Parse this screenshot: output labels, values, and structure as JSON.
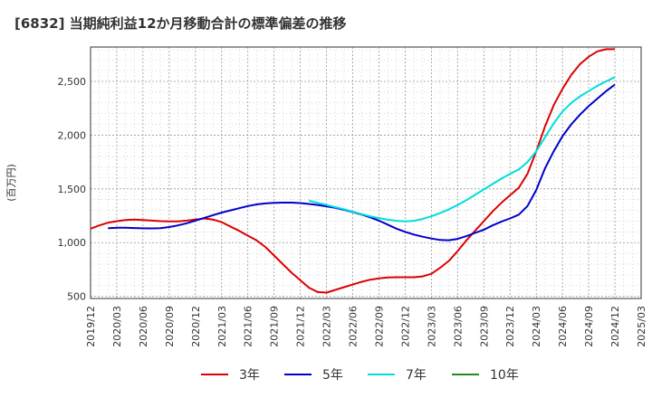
{
  "chart_data": {
    "type": "line",
    "title": "[6832]  当期純利益12か月移動合計の標準偏差の推移",
    "ylabel": "(百万円)",
    "xlabel": "",
    "ylim": [
      480,
      2820
    ],
    "yticks": [
      500,
      1000,
      1500,
      2000,
      2500
    ],
    "ytick_labels": [
      "500",
      "1,000",
      "1,500",
      "2,000",
      "2,500"
    ],
    "xticks": [
      "2019/12",
      "2020/03",
      "2020/06",
      "2020/09",
      "2020/12",
      "2021/03",
      "2021/06",
      "2021/09",
      "2021/12",
      "2022/03",
      "2022/06",
      "2022/09",
      "2022/12",
      "2023/03",
      "2023/06",
      "2023/09",
      "2023/12",
      "2024/03",
      "2024/06",
      "2024/09",
      "2024/12",
      "2025/03"
    ],
    "grid": true,
    "legend_position": "bottom",
    "series": [
      {
        "name": "3年",
        "color": "#dd0000",
        "x": [
          "2019/12",
          "2020/01",
          "2020/02",
          "2020/03",
          "2020/04",
          "2020/05",
          "2020/06",
          "2020/07",
          "2020/08",
          "2020/09",
          "2020/10",
          "2020/11",
          "2020/12",
          "2021/01",
          "2021/02",
          "2021/03",
          "2021/04",
          "2021/05",
          "2021/06",
          "2021/07",
          "2021/08",
          "2021/09",
          "2021/10",
          "2021/11",
          "2021/12",
          "2022/01",
          "2022/02",
          "2022/03",
          "2022/04",
          "2022/05",
          "2022/06",
          "2022/07",
          "2022/08",
          "2022/09",
          "2022/10",
          "2022/11",
          "2022/12",
          "2023/01",
          "2023/02",
          "2023/03",
          "2023/04",
          "2023/05",
          "2023/06",
          "2023/07",
          "2023/08",
          "2023/09",
          "2023/10",
          "2023/11",
          "2023/12",
          "2024/01",
          "2024/02",
          "2024/03",
          "2024/04",
          "2024/05",
          "2024/06",
          "2024/07",
          "2024/08",
          "2024/09",
          "2024/10",
          "2024/11",
          "2024/12"
        ],
        "values": [
          1130,
          1160,
          1185,
          1200,
          1210,
          1215,
          1210,
          1205,
          1200,
          1198,
          1198,
          1205,
          1215,
          1225,
          1215,
          1190,
          1150,
          1110,
          1065,
          1020,
          960,
          880,
          800,
          720,
          650,
          580,
          540,
          535,
          560,
          585,
          610,
          635,
          655,
          668,
          675,
          678,
          678,
          678,
          685,
          710,
          765,
          830,
          920,
          1020,
          1110,
          1200,
          1290,
          1370,
          1440,
          1510,
          1640,
          1850,
          2080,
          2280,
          2430,
          2560,
          2660,
          2730,
          2780,
          2800,
          2800
        ]
      },
      {
        "name": "5年",
        "color": "#0000cc",
        "x": [
          "2020/02",
          "2020/03",
          "2020/04",
          "2020/05",
          "2020/06",
          "2020/07",
          "2020/08",
          "2020/09",
          "2020/10",
          "2020/11",
          "2020/12",
          "2021/01",
          "2021/02",
          "2021/03",
          "2021/04",
          "2021/05",
          "2021/06",
          "2021/07",
          "2021/08",
          "2021/09",
          "2021/10",
          "2021/11",
          "2021/12",
          "2022/01",
          "2022/02",
          "2022/03",
          "2022/04",
          "2022/05",
          "2022/06",
          "2022/07",
          "2022/08",
          "2022/09",
          "2022/10",
          "2022/11",
          "2022/12",
          "2023/01",
          "2023/02",
          "2023/03",
          "2023/04",
          "2023/05",
          "2023/06",
          "2023/07",
          "2023/08",
          "2023/09",
          "2023/10",
          "2023/11",
          "2023/12",
          "2024/01",
          "2024/02",
          "2024/03",
          "2024/04",
          "2024/05",
          "2024/06",
          "2024/07",
          "2024/08",
          "2024/09",
          "2024/10",
          "2024/11",
          "2024/12"
        ],
        "values": [
          1135,
          1138,
          1138,
          1136,
          1133,
          1132,
          1135,
          1145,
          1160,
          1180,
          1205,
          1230,
          1255,
          1280,
          1300,
          1320,
          1340,
          1355,
          1365,
          1370,
          1372,
          1372,
          1368,
          1360,
          1350,
          1338,
          1323,
          1305,
          1285,
          1262,
          1235,
          1205,
          1168,
          1130,
          1100,
          1075,
          1055,
          1038,
          1025,
          1022,
          1035,
          1060,
          1090,
          1120,
          1160,
          1195,
          1225,
          1260,
          1340,
          1490,
          1690,
          1850,
          1990,
          2100,
          2190,
          2270,
          2340,
          2410,
          2470
        ]
      },
      {
        "name": "7年",
        "color": "#00dddd",
        "x": [
          "2022/01",
          "2022/02",
          "2022/03",
          "2022/04",
          "2022/05",
          "2022/06",
          "2022/07",
          "2022/08",
          "2022/09",
          "2022/10",
          "2022/11",
          "2022/12",
          "2023/01",
          "2023/02",
          "2023/03",
          "2023/04",
          "2023/05",
          "2023/06",
          "2023/07",
          "2023/08",
          "2023/09",
          "2023/10",
          "2023/11",
          "2023/12",
          "2024/01",
          "2024/02",
          "2024/03",
          "2024/04",
          "2024/05",
          "2024/06",
          "2024/07",
          "2024/08",
          "2024/09",
          "2024/10",
          "2024/11",
          "2024/12"
        ],
        "values": [
          1390,
          1370,
          1350,
          1330,
          1310,
          1288,
          1265,
          1245,
          1228,
          1213,
          1203,
          1198,
          1203,
          1220,
          1245,
          1275,
          1310,
          1350,
          1395,
          1445,
          1495,
          1545,
          1595,
          1640,
          1680,
          1750,
          1850,
          1980,
          2110,
          2220,
          2300,
          2360,
          2410,
          2460,
          2500,
          2540
        ]
      },
      {
        "name": "10年",
        "color": "#228b22",
        "x": [],
        "values": []
      }
    ]
  }
}
